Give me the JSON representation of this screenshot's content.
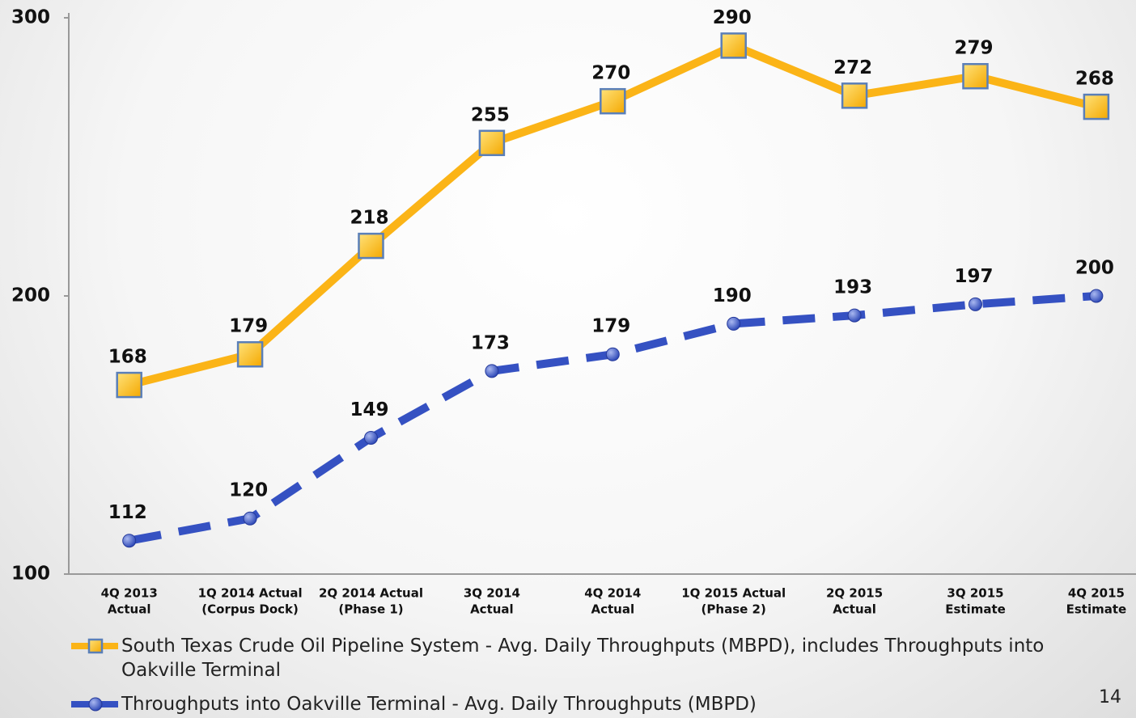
{
  "chart_data": {
    "type": "line",
    "categories": [
      [
        "4Q 2013",
        "Actual"
      ],
      [
        "1Q 2014 Actual",
        "(Corpus Dock)"
      ],
      [
        "2Q 2014 Actual",
        "(Phase 1)"
      ],
      [
        "3Q 2014",
        "Actual"
      ],
      [
        "4Q 2014",
        "Actual"
      ],
      [
        "1Q 2015 Actual",
        "(Phase 2)"
      ],
      [
        "2Q 2015",
        "Actual"
      ],
      [
        "3Q 2015",
        "Estimate"
      ],
      [
        "4Q 2015",
        "Estimate"
      ]
    ],
    "series": [
      {
        "name": "South Texas Crude Oil Pipeline System - Avg. Daily Throughputs (MBPD), includes Throughputs into Oakville Terminal",
        "color": "#fbb417",
        "marker": "square",
        "dashed": false,
        "values": [
          168,
          179,
          218,
          255,
          270,
          290,
          272,
          279,
          268
        ]
      },
      {
        "name": "Throughputs into Oakville Terminal - Avg. Daily Throughputs (MBPD)",
        "color": "#3551c2",
        "marker": "circle",
        "dashed": true,
        "values": [
          112,
          120,
          149,
          173,
          179,
          190,
          193,
          197,
          200
        ]
      }
    ],
    "ylim": [
      100,
      300
    ],
    "yticks": [
      100,
      200,
      300
    ],
    "grid": false,
    "page_number": "14"
  }
}
